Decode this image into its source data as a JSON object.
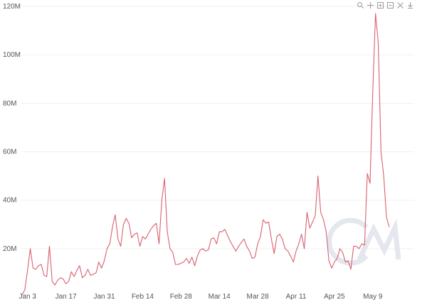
{
  "colors": {
    "series": "#d9606e",
    "grid": "#f0f0f0",
    "tick_text": "#555555",
    "watermark": "#e4e7ee"
  },
  "toolbar": {
    "icons": [
      "zoom-icon",
      "pan-icon",
      "zoom-in-icon",
      "zoom-out-icon",
      "reset-zoom-icon",
      "download-icon"
    ]
  },
  "chart_data": {
    "type": "line",
    "title": "",
    "xlabel": "",
    "ylabel": "",
    "grid": true,
    "legend": "none",
    "ylim": [
      0,
      120000000
    ],
    "y_ticks": [
      {
        "value": 20000000,
        "label": "20M"
      },
      {
        "value": 40000000,
        "label": "40M"
      },
      {
        "value": 60000000,
        "label": "60M"
      },
      {
        "value": 80000000,
        "label": "80M"
      },
      {
        "value": 100000000,
        "label": "100M"
      },
      {
        "value": 120000000,
        "label": "120M"
      }
    ],
    "x_ticks": [
      {
        "date": "2022-01-03",
        "label": "Jan 3"
      },
      {
        "date": "2022-01-17",
        "label": "Jan 17"
      },
      {
        "date": "2022-01-31",
        "label": "Jan 31"
      },
      {
        "date": "2022-02-14",
        "label": "Feb 14"
      },
      {
        "date": "2022-02-28",
        "label": "Feb 28"
      },
      {
        "date": "2022-03-14",
        "label": "Mar 14"
      },
      {
        "date": "2022-03-28",
        "label": "Mar 28"
      },
      {
        "date": "2022-04-11",
        "label": "Apr 11"
      },
      {
        "date": "2022-04-25",
        "label": "Apr 25"
      },
      {
        "date": "2022-05-09",
        "label": "May 9"
      }
    ],
    "series": [
      {
        "x_start": "2022-01-01",
        "x_step_days": 1,
        "values": [
          1000000,
          3000000,
          11000000,
          20000000,
          12000000,
          11500000,
          13000000,
          13500000,
          9000000,
          8500000,
          21000000,
          6500000,
          5000000,
          7000000,
          8000000,
          7500000,
          5500000,
          6500000,
          10500000,
          8500000,
          11000000,
          13000000,
          8000000,
          9000000,
          11500000,
          9000000,
          9500000,
          10000000,
          14500000,
          12000000,
          15000000,
          20000000,
          22000000,
          29000000,
          34000000,
          24000000,
          21000000,
          30000000,
          32500000,
          30500000,
          24500000,
          26000000,
          26500000,
          21000000,
          25000000,
          24000000,
          26000000,
          28000000,
          29500000,
          30500000,
          22000000,
          40000000,
          49000000,
          27000000,
          20000000,
          18500000,
          13500000,
          13500000,
          14000000,
          14500000,
          16000000,
          14000000,
          16500000,
          13000000,
          17000000,
          19500000,
          20000000,
          19000000,
          19500000,
          24000000,
          24500000,
          22000000,
          27000000,
          27000000,
          28000000,
          25500000,
          23000000,
          21000000,
          19000000,
          21000000,
          22500000,
          24000000,
          21000000,
          19000000,
          16000000,
          16500000,
          22000000,
          25000000,
          32000000,
          30500000,
          31000000,
          24000000,
          18000000,
          25000000,
          26000000,
          24000000,
          20000000,
          19000000,
          17000000,
          14500000,
          19000000,
          22000000,
          26000000,
          20000000,
          35000000,
          28500000,
          31000000,
          33500000,
          50000000,
          35000000,
          32000000,
          27000000,
          15000000,
          12000000,
          14500000,
          16000000,
          20000000,
          18500000,
          14500000,
          15000000,
          11500000,
          21000000,
          21000000,
          20000000,
          22000000,
          21500000,
          51000000,
          47000000,
          85000000,
          117000000,
          105000000,
          60000000,
          50000000,
          33000000,
          29000000
        ]
      }
    ]
  }
}
